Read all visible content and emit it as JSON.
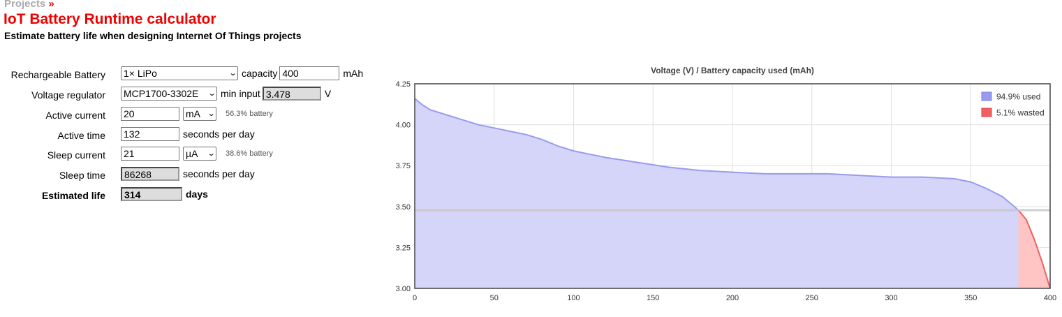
{
  "breadcrumb": {
    "link": "Projects",
    "separator": "»"
  },
  "page": {
    "title": "IoT Battery Runtime calculator",
    "subtitle": "Estimate battery life when designing Internet Of Things projects"
  },
  "form": {
    "battery": {
      "label": "Rechargeable Battery",
      "value": "1× LiPo",
      "capacity_label": "capacity",
      "capacity": "400",
      "capacity_unit": "mAh"
    },
    "regulator": {
      "label": "Voltage regulator",
      "value": "MCP1700-3302E",
      "min_input_label": "min input",
      "min_input": "3.478",
      "min_input_unit": "V"
    },
    "active_current": {
      "label": "Active current",
      "value": "20",
      "unit": "mA",
      "note": "56.3% battery"
    },
    "active_time": {
      "label": "Active time",
      "value": "132",
      "unit": "seconds per day"
    },
    "sleep_current": {
      "label": "Sleep current",
      "value": "21",
      "unit": "µA",
      "note": "38.6% battery"
    },
    "sleep_time": {
      "label": "Sleep time",
      "value": "86268",
      "unit": "seconds per day"
    },
    "estimated_life": {
      "label": "Estimated life",
      "value": "314",
      "unit": "days"
    }
  },
  "colors": {
    "accent": "#ee0000",
    "used_fill": "#d5d5fa",
    "used_line": "#9a9af0",
    "wasted_fill": "#ffc4c4",
    "wasted_line": "#f06060",
    "cutoff_line": "#c8c8c8"
  },
  "chart_data": {
    "type": "area",
    "title": "Voltage (V) / Battery capacity used (mAh)",
    "xlabel": "",
    "ylabel": "",
    "xlim": [
      0,
      400
    ],
    "ylim": [
      3.0,
      4.25
    ],
    "x_ticks": [
      0,
      50,
      100,
      150,
      200,
      250,
      300,
      350,
      400
    ],
    "y_ticks": [
      "3.00",
      "3.25",
      "3.50",
      "3.75",
      "4.00",
      "4.25"
    ],
    "grid": true,
    "legend_position": "top-right",
    "cutoff_voltage": 3.478,
    "series": [
      {
        "name": "94.9% used",
        "x": [
          0,
          5,
          10,
          20,
          30,
          40,
          50,
          60,
          70,
          80,
          90,
          100,
          110,
          120,
          140,
          160,
          180,
          200,
          220,
          240,
          260,
          280,
          300,
          320,
          340,
          350,
          360,
          370,
          375,
          380
        ],
        "y": [
          4.16,
          4.12,
          4.09,
          4.06,
          4.03,
          4.0,
          3.98,
          3.96,
          3.94,
          3.91,
          3.87,
          3.84,
          3.82,
          3.8,
          3.77,
          3.74,
          3.72,
          3.71,
          3.7,
          3.7,
          3.7,
          3.69,
          3.68,
          3.68,
          3.67,
          3.65,
          3.61,
          3.56,
          3.52,
          3.478
        ]
      },
      {
        "name": "5.1% wasted",
        "x": [
          380,
          385,
          390,
          395,
          400
        ],
        "y": [
          3.478,
          3.42,
          3.3,
          3.16,
          3.0
        ]
      }
    ]
  }
}
